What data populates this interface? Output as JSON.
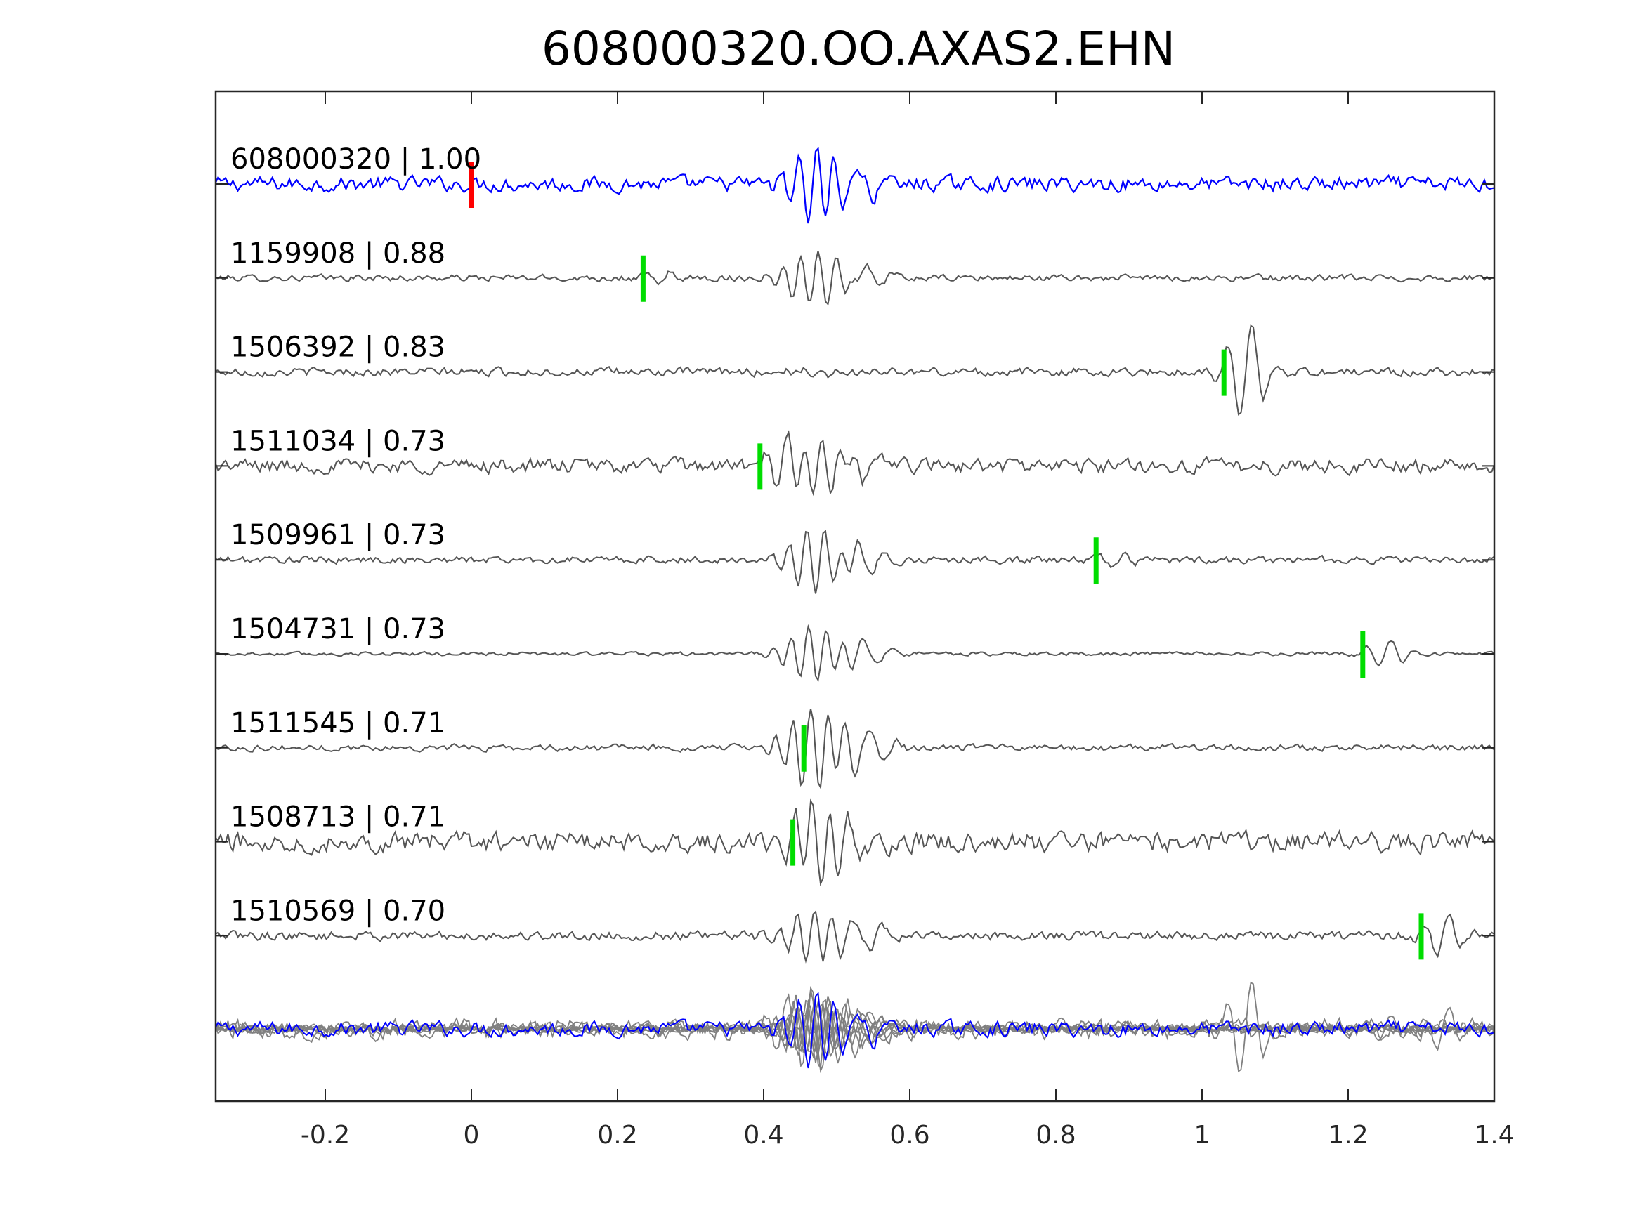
{
  "chart_data": {
    "type": "line",
    "title": "608000320.OO.AXAS2.EHN",
    "xlabel": "",
    "ylabel": "",
    "xlim": [
      -0.35,
      1.4
    ],
    "x_ticks": [
      "-0.2",
      "0",
      "0.2",
      "0.4",
      "0.6",
      "0.8",
      "1",
      "1.2",
      "1.4"
    ],
    "x_tick_values": [
      -0.2,
      0,
      0.2,
      0.4,
      0.6,
      0.8,
      1.0,
      1.2,
      1.4
    ],
    "grid": false,
    "colors": {
      "template": "#0000ff",
      "match": "#555555",
      "overlay_match": "#808080",
      "template_pick": "#ff0000",
      "match_pick": "#00dd00",
      "axes": "#262626"
    },
    "series": [
      {
        "id": "608000320",
        "label": "608000320 | 1.00",
        "correlation": 1.0,
        "pick_time": 0.0,
        "pick_color": "red"
      },
      {
        "id": "1159908",
        "label": "1159908 | 0.88",
        "correlation": 0.88,
        "pick_time": 0.235,
        "pick_color": "green"
      },
      {
        "id": "1506392",
        "label": "1506392 | 0.83",
        "correlation": 0.83,
        "pick_time": 1.03,
        "pick_color": "green"
      },
      {
        "id": "1511034",
        "label": "1511034 | 0.73",
        "correlation": 0.73,
        "pick_time": 0.395,
        "pick_color": "green"
      },
      {
        "id": "1509961",
        "label": "1509961 | 0.73",
        "correlation": 0.73,
        "pick_time": 0.855,
        "pick_color": "green"
      },
      {
        "id": "1504731",
        "label": "1504731 | 0.73",
        "correlation": 0.73,
        "pick_time": 1.22,
        "pick_color": "green"
      },
      {
        "id": "1511545",
        "label": "1511545 | 0.71",
        "correlation": 0.71,
        "pick_time": 0.455,
        "pick_color": "green"
      },
      {
        "id": "1508713",
        "label": "1508713 | 0.71",
        "correlation": 0.71,
        "pick_time": 0.44,
        "pick_color": "green"
      },
      {
        "id": "1510569",
        "label": "1510569 | 0.70",
        "correlation": 0.7,
        "pick_time": 1.3,
        "pick_color": "green"
      }
    ]
  }
}
